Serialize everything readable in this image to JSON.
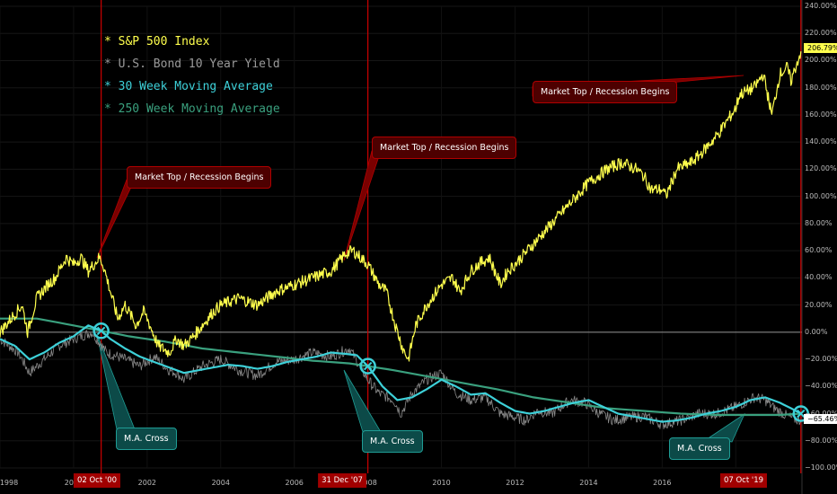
{
  "legend": {
    "sp500": "* S&P 500 Index",
    "bond": "* U.S. Bond 10 Year Yield",
    "ma30": "* 30 Week Moving Average",
    "ma250": "* 250 Week Moving Average"
  },
  "callouts": {
    "recession_1": "Market Top / Recession Begins",
    "recession_2": "Market Top / Recession Begins",
    "recession_3": "Market Top / Recession Begins",
    "ma_cross_1": "M.A. Cross",
    "ma_cross_2": "M.A. Cross",
    "ma_cross_3": "M.A. Cross"
  },
  "badges": {
    "date_1": "02 Oct '00",
    "date_2": "31 Dec '07",
    "date_3": "07 Oct '19",
    "sp500_last": "206.79%",
    "bond_last": "−65.46%"
  },
  "colors": {
    "background": "#000000",
    "sp500": "#ffff4d",
    "bond": "#8a8a8a",
    "ma30": "#3dd0d8",
    "ma250": "#3aa07e",
    "vline": "#cc0000"
  },
  "chart_data": {
    "type": "line",
    "x_unit": "year",
    "xlim": [
      1998,
      2019.8
    ],
    "ylim": [
      -100,
      240
    ],
    "y_ticks": [
      "240.00%",
      "220.00%",
      "200.00%",
      "180.00%",
      "160.00%",
      "140.00%",
      "120.00%",
      "100.00%",
      "80.00%",
      "60.00%",
      "40.00%",
      "20.00%",
      "0.00%",
      "−20.00%",
      "−40.00%",
      "−60.00%",
      "−80.00%",
      "−100.00%"
    ],
    "x_ticks": [
      "1998",
      "2000",
      "2002",
      "2004",
      "2006",
      "2008",
      "2010",
      "2012",
      "2014",
      "2016",
      "2018"
    ],
    "events": [
      2000.75,
      2008.0,
      2019.77
    ],
    "series": [
      {
        "name": "S&P 500 Index",
        "x": [
          1998.0,
          1998.3,
          1998.6,
          1998.75,
          1999.0,
          1999.3,
          1999.5,
          1999.8,
          2000.0,
          2000.2,
          2000.4,
          2000.7,
          2000.8,
          2001.0,
          2001.2,
          2001.4,
          2001.7,
          2001.9,
          2002.0,
          2002.3,
          2002.6,
          2002.8,
          2003.0,
          2003.2,
          2003.5,
          2003.8,
          2004.0,
          2004.5,
          2005.0,
          2005.5,
          2006.0,
          2006.5,
          2007.0,
          2007.4,
          2007.6,
          2007.8,
          2008.0,
          2008.3,
          2008.5,
          2008.75,
          2008.95,
          2009.1,
          2009.3,
          2009.6,
          2010.0,
          2010.3,
          2010.5,
          2010.8,
          2011.0,
          2011.3,
          2011.6,
          2011.8,
          2012.0,
          2012.5,
          2013.0,
          2013.5,
          2014.0,
          2014.5,
          2014.9,
          2015.3,
          2015.5,
          2015.7,
          2016.0,
          2016.1,
          2016.4,
          2016.8,
          2017.0,
          2017.5,
          2018.0,
          2018.1,
          2018.5,
          2018.75,
          2018.98,
          2019.2,
          2019.4,
          2019.5,
          2019.77
        ],
        "values": [
          0,
          10,
          20,
          0,
          25,
          35,
          40,
          55,
          50,
          55,
          45,
          55,
          50,
          30,
          10,
          20,
          5,
          15,
          10,
          -10,
          -15,
          -5,
          -10,
          -5,
          5,
          15,
          20,
          25,
          20,
          30,
          35,
          40,
          45,
          58,
          60,
          55,
          50,
          35,
          30,
          5,
          -12,
          -20,
          5,
          20,
          35,
          40,
          30,
          45,
          50,
          55,
          35,
          45,
          50,
          65,
          80,
          95,
          110,
          120,
          125,
          120,
          115,
          105,
          105,
          100,
          120,
          125,
          130,
          145,
          165,
          175,
          180,
          190,
          160,
          190,
          195,
          185,
          206.79
        ]
      },
      {
        "name": "U.S. Bond 10 Year Yield",
        "x": [
          1998.0,
          1998.5,
          1998.8,
          1999.2,
          1999.6,
          2000.0,
          2000.5,
          2000.9,
          2001.4,
          2001.8,
          2002.2,
          2002.6,
          2002.8,
          2003.0,
          2003.5,
          2004.0,
          2004.5,
          2005.0,
          2005.5,
          2006.0,
          2006.5,
          2007.0,
          2007.5,
          2008.0,
          2008.3,
          2008.7,
          2008.9,
          2009.2,
          2009.6,
          2010.0,
          2010.4,
          2010.8,
          2011.2,
          2011.6,
          2011.9,
          2012.3,
          2012.6,
          2013.0,
          2013.5,
          2013.9,
          2014.3,
          2014.7,
          2015.0,
          2015.5,
          2016.0,
          2016.5,
          2017.0,
          2017.5,
          2018.0,
          2018.5,
          2018.8,
          2019.0,
          2019.4,
          2019.77
        ],
        "values": [
          -5,
          -15,
          -30,
          -20,
          -10,
          -5,
          0,
          -15,
          -20,
          -25,
          -18,
          -28,
          -30,
          -35,
          -25,
          -20,
          -28,
          -32,
          -22,
          -20,
          -15,
          -18,
          -12,
          -35,
          -45,
          -50,
          -60,
          -45,
          -35,
          -30,
          -45,
          -50,
          -48,
          -60,
          -62,
          -65,
          -58,
          -60,
          -50,
          -52,
          -60,
          -65,
          -63,
          -62,
          -68,
          -65,
          -60,
          -60,
          -55,
          -48,
          -50,
          -55,
          -62,
          -65.46
        ]
      },
      {
        "name": "30 Week Moving Average",
        "x": [
          1998.0,
          1998.4,
          1998.8,
          1999.2,
          1999.6,
          2000.0,
          2000.4,
          2000.75,
          2001.0,
          2001.4,
          2001.8,
          2002.2,
          2002.6,
          2003.0,
          2003.4,
          2003.8,
          2004.2,
          2004.6,
          2005.0,
          2005.4,
          2005.8,
          2006.2,
          2006.6,
          2007.0,
          2007.4,
          2007.7,
          2008.0,
          2008.4,
          2008.8,
          2009.2,
          2009.6,
          2010.0,
          2010.4,
          2010.8,
          2011.2,
          2011.6,
          2012.0,
          2012.4,
          2012.8,
          2013.2,
          2013.6,
          2014.0,
          2014.4,
          2014.8,
          2015.2,
          2015.6,
          2016.0,
          2016.4,
          2016.8,
          2017.2,
          2017.6,
          2018.0,
          2018.4,
          2018.8,
          2019.2,
          2019.5,
          2019.77
        ],
        "values": [
          -5,
          -10,
          -20,
          -15,
          -8,
          -3,
          5,
          1,
          -5,
          -12,
          -18,
          -22,
          -26,
          -30,
          -28,
          -26,
          -24,
          -25,
          -27,
          -25,
          -22,
          -20,
          -18,
          -15,
          -16,
          -17,
          -25,
          -40,
          -50,
          -48,
          -42,
          -35,
          -40,
          -46,
          -45,
          -52,
          -58,
          -60,
          -58,
          -55,
          -52,
          -50,
          -55,
          -60,
          -62,
          -64,
          -66,
          -65,
          -63,
          -60,
          -58,
          -55,
          -50,
          -48,
          -52,
          -56,
          -60
        ]
      },
      {
        "name": "250 Week Moving Average",
        "x": [
          1998.0,
          1999.0,
          2000.0,
          2000.75,
          2001.5,
          2002.5,
          2003.5,
          2004.5,
          2005.5,
          2006.5,
          2007.5,
          2008.0,
          2008.7,
          2009.5,
          2010.5,
          2011.5,
          2012.5,
          2013.5,
          2014.5,
          2015.5,
          2016.5,
          2017.5,
          2018.5,
          2019.2,
          2019.77
        ],
        "values": [
          10,
          10,
          5,
          1,
          -3,
          -7,
          -12,
          -15,
          -18,
          -21,
          -23,
          -25,
          -28,
          -32,
          -37,
          -42,
          -48,
          -52,
          -56,
          -58,
          -60,
          -61,
          -61,
          -61,
          -60
        ]
      }
    ]
  }
}
